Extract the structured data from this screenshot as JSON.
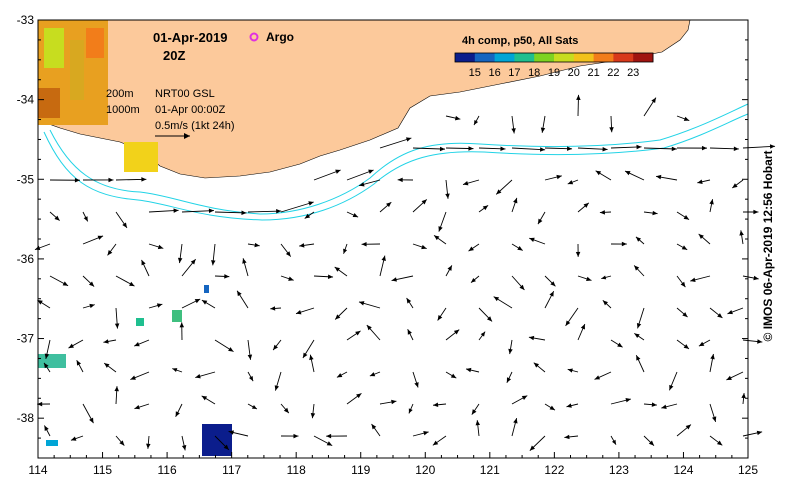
{
  "title": {
    "date": "01-Apr-2019",
    "time": "20Z",
    "argo_label": "Argo"
  },
  "colorbar": {
    "title": "4h comp, p50, All Sats",
    "ticks": [
      "15",
      "16",
      "17",
      "18",
      "19",
      "20",
      "21",
      "22",
      "23"
    ],
    "colors": [
      "#0b1d8c",
      "#1565c0",
      "#00a5d6",
      "#1fbf8f",
      "#7ed321",
      "#c7dd1f",
      "#f2c21a",
      "#f27d1a",
      "#d8391a",
      "#a01410"
    ]
  },
  "legend": {
    "iso200": "200m",
    "iso1000": "1000m",
    "product": "NRT00 GSL",
    "valid_time": "01-Apr 00:00Z",
    "scale": "0.5m/s (1kt 24h)"
  },
  "axes": {
    "x_ticks": [
      "114",
      "115",
      "116",
      "117",
      "118",
      "119",
      "120",
      "121",
      "122",
      "123",
      "124",
      "125"
    ],
    "y_ticks": [
      "-33",
      "-34",
      "-35",
      "-36",
      "-37",
      "-38"
    ],
    "xlim": [
      114,
      125
    ],
    "ylim": [
      -38.5,
      -33
    ]
  },
  "credit": "© IMOS 06-Apr-2019 12:56 Hobart",
  "colors": {
    "land": "#fcc99b",
    "isobath": "#22d3e6",
    "ocean": "#ffffff",
    "argo": "#e030e0"
  }
}
